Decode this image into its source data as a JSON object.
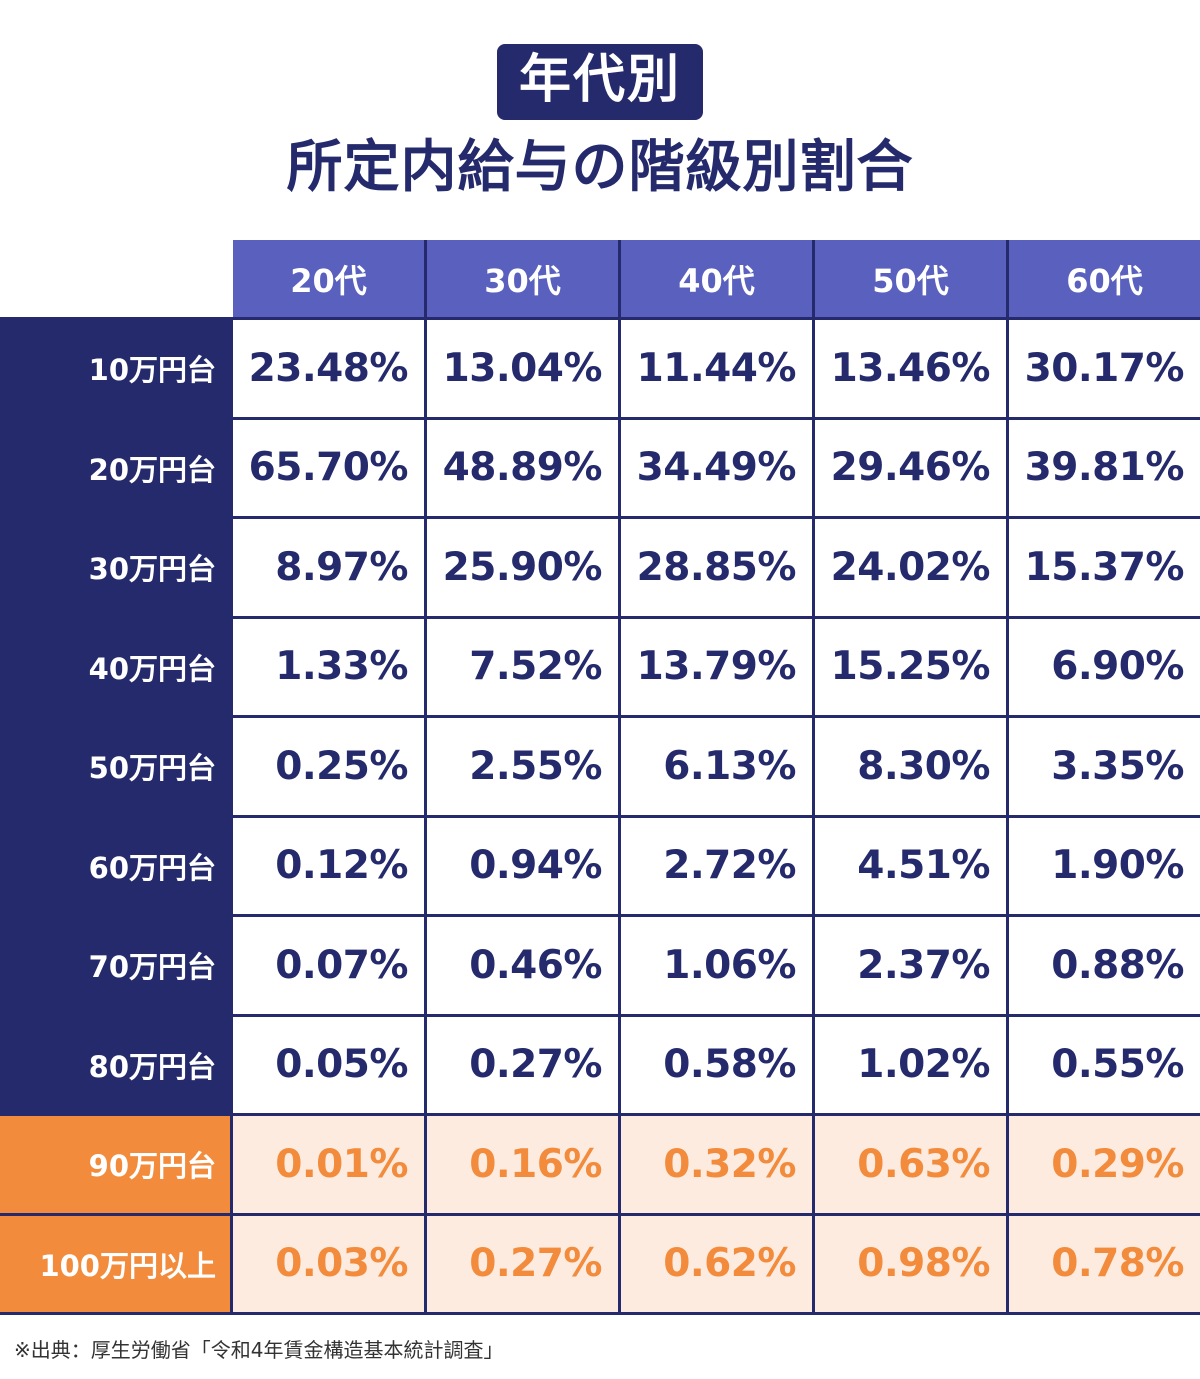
{
  "header": {
    "badge": "年代別",
    "title": "所定内給与の階級別割合"
  },
  "colors": {
    "navy": "#242a6b",
    "header_blue": "#5960bd",
    "orange": "#f28b3c",
    "orange_light": "#fdebdf"
  },
  "chart_data": {
    "type": "table",
    "columns": [
      "20代",
      "30代",
      "40代",
      "50代",
      "60代"
    ],
    "rows": [
      {
        "label": "10万円台",
        "highlight": false,
        "values": [
          "23.48%",
          "13.04%",
          "11.44%",
          "13.46%",
          "30.17%"
        ]
      },
      {
        "label": "20万円台",
        "highlight": false,
        "values": [
          "65.70%",
          "48.89%",
          "34.49%",
          "29.46%",
          "39.81%"
        ]
      },
      {
        "label": "30万円台",
        "highlight": false,
        "values": [
          "8.97%",
          "25.90%",
          "28.85%",
          "24.02%",
          "15.37%"
        ]
      },
      {
        "label": "40万円台",
        "highlight": false,
        "values": [
          "1.33%",
          "7.52%",
          "13.79%",
          "15.25%",
          "6.90%"
        ]
      },
      {
        "label": "50万円台",
        "highlight": false,
        "values": [
          "0.25%",
          "2.55%",
          "6.13%",
          "8.30%",
          "3.35%"
        ]
      },
      {
        "label": "60万円台",
        "highlight": false,
        "values": [
          "0.12%",
          "0.94%",
          "2.72%",
          "4.51%",
          "1.90%"
        ]
      },
      {
        "label": "70万円台",
        "highlight": false,
        "values": [
          "0.07%",
          "0.46%",
          "1.06%",
          "2.37%",
          "0.88%"
        ]
      },
      {
        "label": "80万円台",
        "highlight": false,
        "values": [
          "0.05%",
          "0.27%",
          "0.58%",
          "1.02%",
          "0.55%"
        ]
      },
      {
        "label": "90万円台",
        "highlight": true,
        "values": [
          "0.01%",
          "0.16%",
          "0.32%",
          "0.63%",
          "0.29%"
        ]
      },
      {
        "label": "100万円以上",
        "highlight": true,
        "values": [
          "0.03%",
          "0.27%",
          "0.62%",
          "0.98%",
          "0.78%"
        ]
      }
    ]
  },
  "source": "※出典：厚生労働省「令和4年賃金構造基本統計調査」"
}
